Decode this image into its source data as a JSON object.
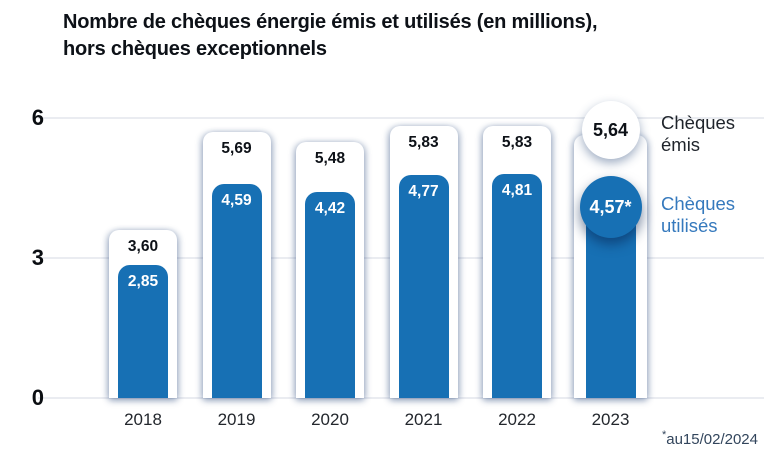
{
  "title_lines": {
    "line1": "Nombre de chèques énergie émis et utilisés (en millions),",
    "line2": "hors chèques exceptionnels"
  },
  "chart_data": {
    "type": "bar",
    "title": "Nombre de chèques énergie émis et utilisés (en millions), hors chèques exceptionnels",
    "categories": [
      "2018",
      "2019",
      "2020",
      "2021",
      "2022",
      "2023"
    ],
    "series": [
      {
        "name": "Chèques émis",
        "values": [
          3.6,
          5.69,
          5.48,
          5.83,
          5.83,
          5.64
        ],
        "labels": [
          "3,60",
          "5,69",
          "5,48",
          "5,83",
          "5,83",
          "5,64"
        ],
        "color": "#FFFFFF"
      },
      {
        "name": "Chèques utilisés",
        "values": [
          2.85,
          4.59,
          4.42,
          4.77,
          4.81,
          4.57
        ],
        "labels": [
          "2,85",
          "4,59",
          "4,42",
          "4,77",
          "4,81",
          "4,57*"
        ],
        "color": "#1770B4"
      }
    ],
    "ylim": [
      0,
      6
    ],
    "yticks": [
      0,
      3,
      6
    ],
    "grid": true,
    "legend_position": "right",
    "last_category_as_circles": true
  },
  "legend": {
    "items": [
      {
        "label": "Chèques émis",
        "color": "#1F242B"
      },
      {
        "label": "Chèques utilisés",
        "color": "#3579BD"
      }
    ]
  },
  "footnote": {
    "asterisk": "*",
    "text": "au15/02/2024"
  },
  "colors": {
    "bar_blue": "#1770B4",
    "grid": "#EAECF1",
    "title_text": "#0D1117",
    "footnote_text": "#32455C"
  }
}
